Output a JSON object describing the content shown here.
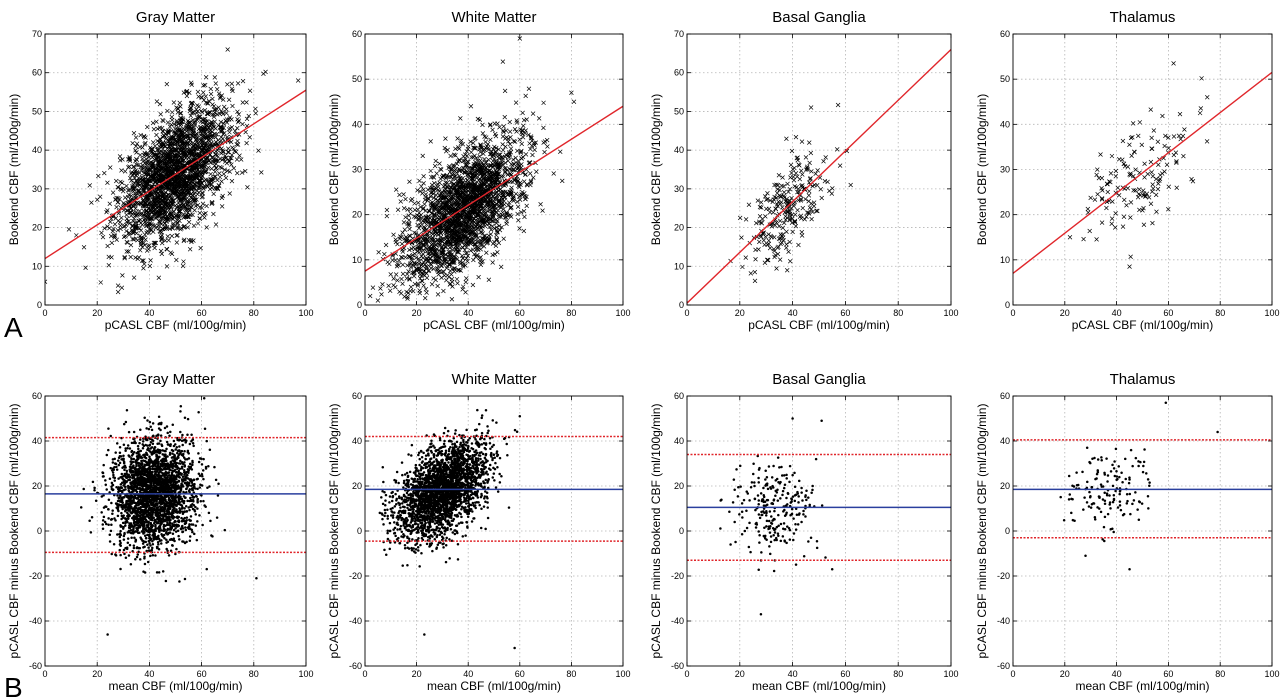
{
  "panel_labels": {
    "a": "A",
    "b": "B"
  },
  "colors": {
    "fit_line": "#e0262b",
    "mean_line": "#2a3f9e",
    "limit_line": "#e0262b",
    "point": "#000000",
    "grid": "#b5b5b5"
  },
  "chart_data": [
    {
      "type": "scatter",
      "title": "Gray Matter",
      "xlabel": "pCASL CBF (ml/100g/min)",
      "ylabel": "Bookend CBF (ml/100g/min)",
      "xlim": [
        0,
        100
      ],
      "ylim": [
        0,
        70
      ],
      "xticks": [
        0,
        20,
        40,
        60,
        80,
        100
      ],
      "yticks": [
        0,
        10,
        20,
        30,
        40,
        50,
        60,
        70
      ],
      "grid": true,
      "marker": "x",
      "fit_line": {
        "x": [
          0,
          100
        ],
        "y": [
          12,
          55.5
        ]
      },
      "cloud": {
        "n": 2200,
        "x_mean": 50,
        "x_sd": 11,
        "y_mean": 34,
        "y_sd": 9,
        "corr": 0.55,
        "xmin": 5,
        "xmax": 98,
        "ymin": 3,
        "ymax": 68
      },
      "points": [
        [
          0,
          6
        ],
        [
          97,
          58
        ],
        [
          28,
          5
        ],
        [
          12,
          18
        ],
        [
          70,
          66
        ]
      ]
    },
    {
      "type": "scatter",
      "title": "White Matter",
      "xlabel": "pCASL CBF (ml/100g/min)",
      "ylabel": "Bookend CBF (ml/100g/min)",
      "xlim": [
        0,
        100
      ],
      "ylim": [
        0,
        60
      ],
      "xticks": [
        0,
        20,
        40,
        60,
        80,
        100
      ],
      "yticks": [
        0,
        10,
        20,
        30,
        40,
        50,
        60
      ],
      "grid": true,
      "marker": "x",
      "fit_line": {
        "x": [
          0,
          100
        ],
        "y": [
          7.5,
          44
        ]
      },
      "cloud": {
        "n": 2200,
        "x_mean": 38,
        "x_sd": 12,
        "y_mean": 21,
        "y_sd": 8,
        "corr": 0.6,
        "xmin": 2,
        "xmax": 82,
        "ymin": 1,
        "ymax": 58
      },
      "points": [
        [
          2,
          2
        ],
        [
          5,
          1
        ],
        [
          80,
          47
        ],
        [
          81,
          45
        ],
        [
          60,
          59
        ]
      ]
    },
    {
      "type": "scatter",
      "title": "Basal Ganglia",
      "xlabel": "pCASL CBF (ml/100g/min)",
      "ylabel": "Bookend CBF (ml/100g/min)",
      "xlim": [
        0,
        100
      ],
      "ylim": [
        0,
        70
      ],
      "xticks": [
        0,
        20,
        40,
        60,
        80,
        100
      ],
      "yticks": [
        0,
        10,
        20,
        30,
        40,
        50,
        60,
        70
      ],
      "grid": true,
      "marker": "x",
      "fit_line": {
        "x": [
          0,
          100
        ],
        "y": [
          0.5,
          66
        ]
      },
      "cloud": {
        "n": 260,
        "x_mean": 38,
        "x_sd": 8,
        "y_mean": 25,
        "y_sd": 8,
        "corr": 0.65,
        "xmin": 14,
        "xmax": 63,
        "ymin": 4,
        "ymax": 55
      },
      "points": [
        [
          47,
          51
        ],
        [
          62,
          31
        ],
        [
          58,
          36
        ]
      ]
    },
    {
      "type": "scatter",
      "title": "Thalamus",
      "xlabel": "pCASL CBF (ml/100g/min)",
      "ylabel": "Bookend CBF (ml/100g/min)",
      "xlim": [
        0,
        100
      ],
      "ylim": [
        0,
        60
      ],
      "xticks": [
        0,
        20,
        40,
        60,
        80,
        100
      ],
      "yticks": [
        0,
        10,
        20,
        30,
        40,
        50,
        60
      ],
      "grid": true,
      "marker": "x",
      "fit_line": {
        "x": [
          0,
          100
        ],
        "y": [
          7,
          51.5
        ]
      },
      "cloud": {
        "n": 150,
        "x_mean": 48,
        "x_sd": 10,
        "y_mean": 28,
        "y_sd": 8,
        "corr": 0.55,
        "xmin": 22,
        "xmax": 75,
        "ymin": 8,
        "ymax": 54
      },
      "points": [
        [
          62,
          53.5
        ],
        [
          45,
          8.5
        ],
        [
          75,
          46
        ],
        [
          22,
          15
        ]
      ]
    },
    {
      "type": "scatter",
      "title": "Gray Matter",
      "xlabel": "mean CBF (ml/100g/min)",
      "ylabel": "pCASL CBF minus Bookend CBF (ml/100g/min)",
      "xlim": [
        0,
        100
      ],
      "ylim": [
        -60,
        60
      ],
      "xticks": [
        0,
        20,
        40,
        60,
        80,
        100
      ],
      "yticks": [
        -60,
        -40,
        -20,
        0,
        20,
        40,
        60
      ],
      "grid": true,
      "marker": "dot",
      "mean_line": 16.5,
      "limits": [
        41.5,
        -9.5
      ],
      "cloud": {
        "n": 2600,
        "x_mean": 42,
        "x_sd": 8,
        "y_mean": 17,
        "y_sd": 12,
        "corr": 0.05,
        "xmin": 4,
        "xmax": 82,
        "ymin": -47,
        "ymax": 59
      },
      "points": [
        [
          81,
          -21
        ],
        [
          24,
          -46
        ],
        [
          61,
          59
        ]
      ]
    },
    {
      "type": "scatter",
      "title": "White Matter",
      "xlabel": "mean CBF (ml/100g/min)",
      "ylabel": "pCASL CBF minus Bookend CBF (ml/100g/min)",
      "xlim": [
        0,
        100
      ],
      "ylim": [
        -60,
        60
      ],
      "xticks": [
        0,
        20,
        40,
        60,
        80,
        100
      ],
      "yticks": [
        -60,
        -40,
        -20,
        0,
        20,
        40,
        60
      ],
      "grid": true,
      "marker": "dot",
      "mean_line": 18.5,
      "limits": [
        42,
        -4.5
      ],
      "cloud": {
        "n": 2600,
        "x_mean": 30,
        "x_sd": 9,
        "y_mean": 18,
        "y_sd": 11,
        "corr": 0.5,
        "xmin": 5,
        "xmax": 62,
        "ymin": -52,
        "ymax": 58
      },
      "points": [
        [
          58,
          -52
        ],
        [
          23,
          -46
        ],
        [
          60,
          51
        ]
      ]
    },
    {
      "type": "scatter",
      "title": "Basal Ganglia",
      "xlabel": "mean CBF (ml/100g/min)",
      "ylabel": "pCASL CBF minus Bookend CBF (ml/100g/min)",
      "xlim": [
        0,
        100
      ],
      "ylim": [
        -60,
        60
      ],
      "xticks": [
        0,
        20,
        40,
        60,
        80,
        100
      ],
      "yticks": [
        -60,
        -40,
        -20,
        0,
        20,
        40,
        60
      ],
      "grid": true,
      "marker": "dot",
      "mean_line": 10.5,
      "limits": [
        34,
        -13
      ],
      "cloud": {
        "n": 260,
        "x_mean": 33,
        "x_sd": 8,
        "y_mean": 10,
        "y_sd": 10,
        "corr": 0.0,
        "xmin": 12,
        "xmax": 55,
        "ymin": -38,
        "ymax": 50
      },
      "points": [
        [
          40,
          50
        ],
        [
          51,
          49
        ],
        [
          28,
          -37
        ],
        [
          55,
          -17
        ]
      ]
    },
    {
      "type": "scatter",
      "title": "Thalamus",
      "xlabel": "mean CBF (ml/100g/min)",
      "ylabel": "pCASL CBF minus Bookend CBF (ml/100g/min)",
      "xlim": [
        0,
        100
      ],
      "ylim": [
        -60,
        60
      ],
      "xticks": [
        0,
        20,
        40,
        60,
        80,
        100
      ],
      "yticks": [
        -60,
        -40,
        -20,
        0,
        20,
        40,
        60
      ],
      "grid": true,
      "marker": "dot",
      "mean_line": 18.5,
      "limits": [
        40.5,
        -3
      ],
      "cloud": {
        "n": 150,
        "x_mean": 38,
        "x_sd": 8,
        "y_mean": 19,
        "y_sd": 9,
        "corr": 0.2,
        "xmin": 18,
        "xmax": 80,
        "ymin": -17,
        "ymax": 58
      },
      "points": [
        [
          59,
          57
        ],
        [
          79,
          44
        ],
        [
          45,
          -17
        ],
        [
          28,
          -11
        ]
      ]
    }
  ]
}
